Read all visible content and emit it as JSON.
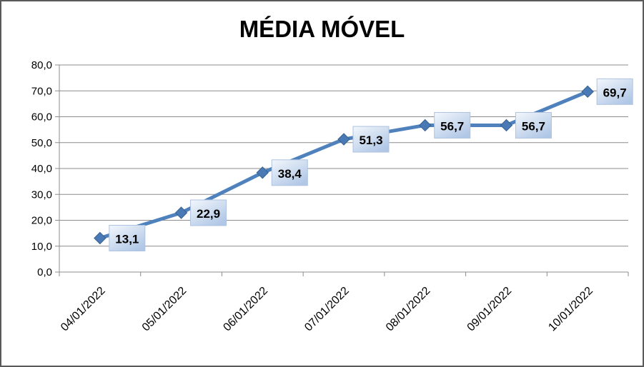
{
  "window": {
    "background": "#ffffff",
    "border_color": "#5a5a5a"
  },
  "chart_data": {
    "type": "line",
    "title": "MÉDIA MÓVEL",
    "categories": [
      "04/01/2022",
      "05/01/2022",
      "06/01/2022",
      "07/01/2022",
      "08/01/2022",
      "09/01/2022",
      "10/01/2022"
    ],
    "values": [
      13.1,
      22.9,
      38.4,
      51.3,
      56.7,
      56.7,
      69.7
    ],
    "point_labels": [
      "13,1",
      "22,9",
      "38,4",
      "51,3",
      "56,7",
      "56,7",
      "69,7"
    ],
    "xlabel": "",
    "ylabel": "",
    "ylim": [
      0,
      80
    ],
    "y_tick_step": 10,
    "y_tick_labels": [
      "0,0",
      "10,0",
      "20,0",
      "30,0",
      "40,0",
      "50,0",
      "60,0",
      "70,0",
      "80,0"
    ],
    "x_label_rotation_deg": 45,
    "grid": true,
    "legend_position": "none",
    "marker_shape": "diamond",
    "colors": {
      "series_line": "#4f81bd",
      "marker_fill": "#4a7ab5",
      "marker_edge": "#38618e",
      "gridline": "#8c8c8c",
      "axis": "#8c8c8c",
      "label_box_border": "#aec3e0",
      "label_box_gradient_light": "#f3f7fc",
      "label_box_gradient_dark": "#b0c7e6",
      "text": "#000000"
    }
  }
}
